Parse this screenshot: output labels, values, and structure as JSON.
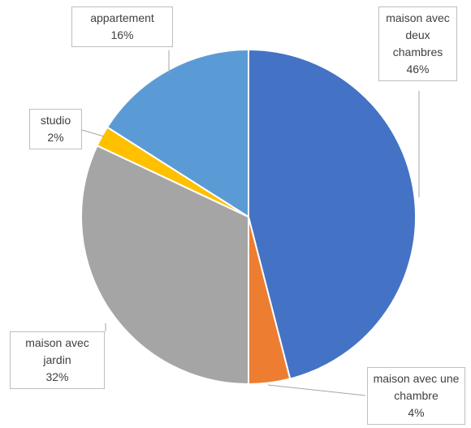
{
  "chart_data": {
    "type": "pie",
    "categories": [
      "maison avec deux chambres",
      "maison avec une chambre",
      "maison avec jardin",
      "studio",
      "appartement"
    ],
    "values": [
      46,
      4,
      32,
      2,
      16
    ],
    "value_labels": [
      "46%",
      "4%",
      "32%",
      "2%",
      "16%"
    ],
    "colors": [
      "#4472c4",
      "#ed7d31",
      "#a5a5a5",
      "#ffc000",
      "#5b9bd5"
    ]
  }
}
